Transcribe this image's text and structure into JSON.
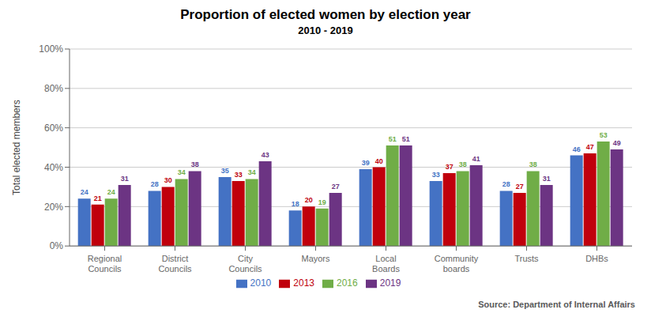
{
  "chart_data": {
    "type": "bar",
    "title": "Proportion of elected women by election year",
    "subtitle": "2010 - 2019",
    "ylabel": "Total elected members",
    "source": "Source: Department of Internal Affairs",
    "categories": [
      "Regional\nCouncils",
      "District\nCouncils",
      "City\nCouncils",
      "Mayors",
      "Local\nBoards",
      "Community\nboards",
      "Trusts",
      "DHBs"
    ],
    "series": [
      {
        "name": "2010",
        "color": "#4472C4",
        "values": [
          24,
          28,
          35,
          18,
          39,
          33,
          28,
          46
        ]
      },
      {
        "name": "2013",
        "color": "#C0000C",
        "values": [
          21,
          30,
          33,
          20,
          40,
          37,
          27,
          47
        ]
      },
      {
        "name": "2016",
        "color": "#70AD47",
        "values": [
          24,
          34,
          34,
          19,
          51,
          38,
          38,
          53
        ]
      },
      {
        "name": "2019",
        "color": "#6C3483",
        "values": [
          31,
          38,
          43,
          27,
          51,
          41,
          31,
          49
        ]
      }
    ],
    "ylim": [
      0,
      100
    ],
    "yticks": [
      {
        "value": 0,
        "label": "0%"
      },
      {
        "value": 20,
        "label": "20%"
      },
      {
        "value": 40,
        "label": "40%"
      },
      {
        "value": 60,
        "label": "60%"
      },
      {
        "value": 80,
        "label": "80%"
      },
      {
        "value": 100,
        "label": "100%"
      }
    ],
    "grid": true,
    "legend": "bottom",
    "data_labels": true
  }
}
